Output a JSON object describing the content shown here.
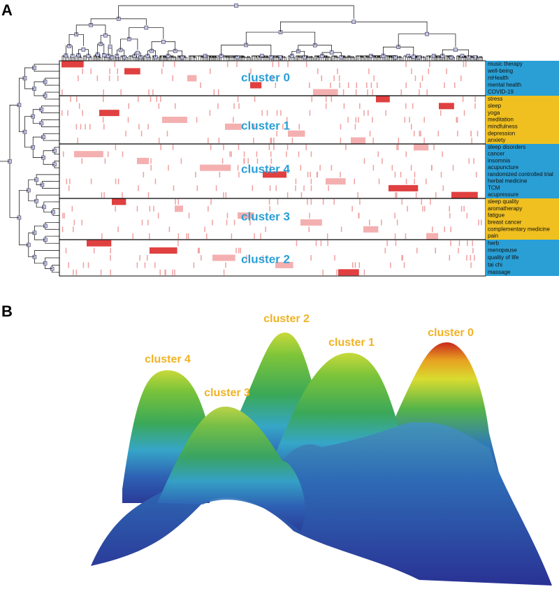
{
  "panel_a": {
    "label": "A",
    "clusters": [
      {
        "name": "cluster 0",
        "keywords": [
          "music therapy",
          "well-being",
          "mHealth",
          "mental health",
          "COVID-19"
        ]
      },
      {
        "name": "cluster 1",
        "keywords": [
          "stress",
          "sleep",
          "yoga",
          "meditation",
          "mindfulness",
          "depression",
          "anxiety"
        ]
      },
      {
        "name": "cluster 4",
        "keywords": [
          "sleep disorders",
          "cancer",
          "insomnia",
          "acupuncture",
          "randomized controlled trial",
          "herbal medicine",
          "TCM",
          "acupressure"
        ]
      },
      {
        "name": "cluster 3",
        "keywords": [
          "sleep quality",
          "aromatherapy",
          "fatigue",
          "breast cancer",
          "complementary medicine",
          "pain"
        ]
      },
      {
        "name": "cluster 2",
        "keywords": [
          "herb",
          "menopause",
          "quality of life",
          "tai chi",
          "massage"
        ]
      }
    ]
  },
  "panel_b": {
    "label": "B",
    "peaks": [
      "cluster 4",
      "cluster 3",
      "cluster 2",
      "cluster 1",
      "cluster 0"
    ]
  }
}
